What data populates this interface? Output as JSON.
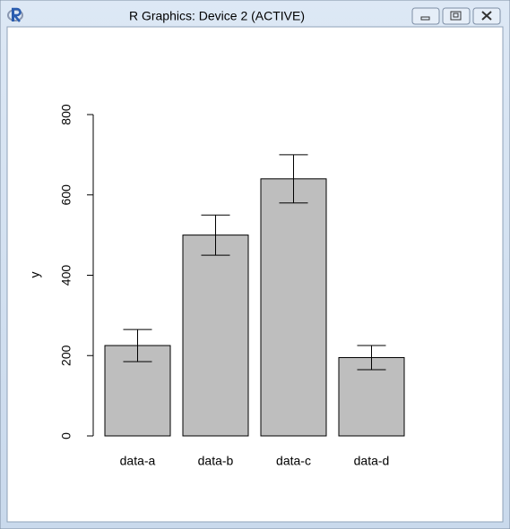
{
  "window": {
    "title": "R Graphics: Device 2 (ACTIVE)"
  },
  "chart_data": {
    "type": "bar",
    "ylabel": "y",
    "categories": [
      "data-a",
      "data-b",
      "data-c",
      "data-d"
    ],
    "values": [
      225,
      500,
      640,
      195
    ],
    "errors": [
      40,
      50,
      60,
      30
    ],
    "color": "#bebebe",
    "ylim": [
      0,
      800
    ],
    "yticks": [
      0,
      200,
      400,
      600,
      800
    ]
  }
}
